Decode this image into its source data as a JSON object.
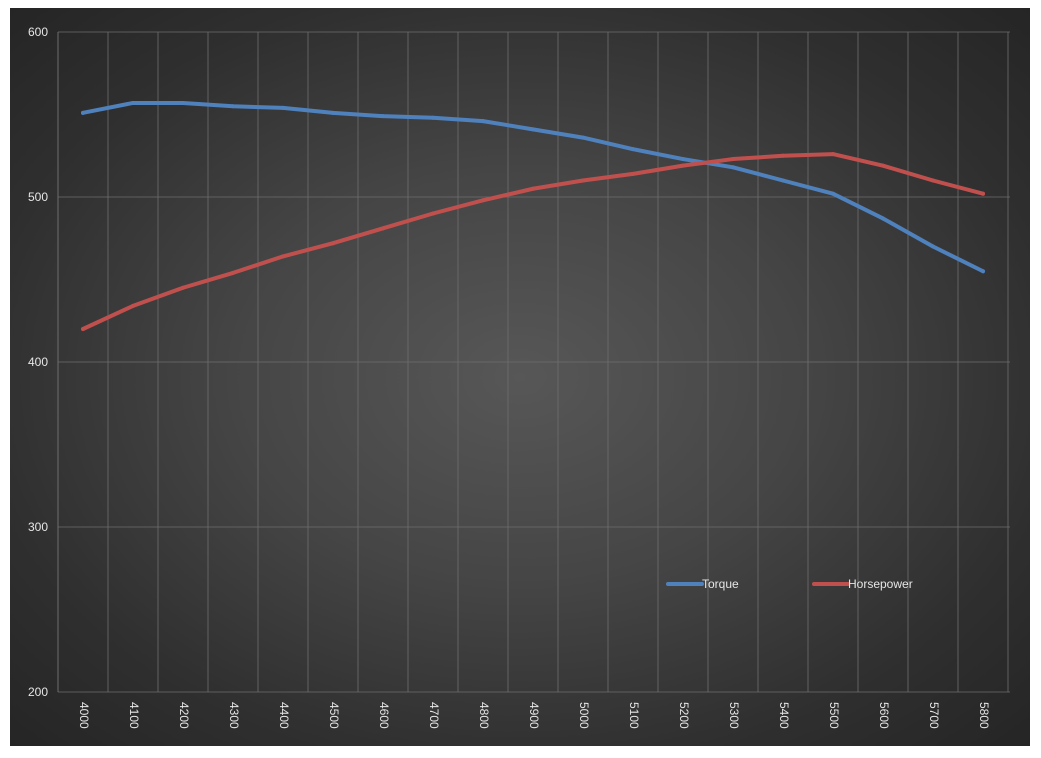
{
  "chart_data": {
    "type": "line",
    "title": "",
    "xlabel": "",
    "ylabel": "",
    "x": [
      4000,
      4100,
      4200,
      4300,
      4400,
      4500,
      4600,
      4700,
      4800,
      4900,
      5000,
      5100,
      5200,
      5300,
      5400,
      5500,
      5600,
      5700,
      5800
    ],
    "ylim": [
      200,
      600
    ],
    "yticks": [
      200,
      300,
      400,
      500,
      600
    ],
    "grid": true,
    "legend_position": "bottom-right",
    "background": "dark radial gradient",
    "series": [
      {
        "name": "Torque",
        "color": "#4f81bd",
        "values": [
          551,
          557,
          557,
          555,
          554,
          551,
          549,
          548,
          546,
          541,
          536,
          529,
          523,
          518,
          510,
          502,
          487,
          470,
          455
        ]
      },
      {
        "name": "Horsepower",
        "color": "#c0504d",
        "values": [
          420,
          434,
          445,
          454,
          464,
          472,
          481,
          490,
          498,
          505,
          510,
          514,
          519,
          523,
          525,
          526,
          519,
          510,
          502
        ]
      }
    ]
  }
}
